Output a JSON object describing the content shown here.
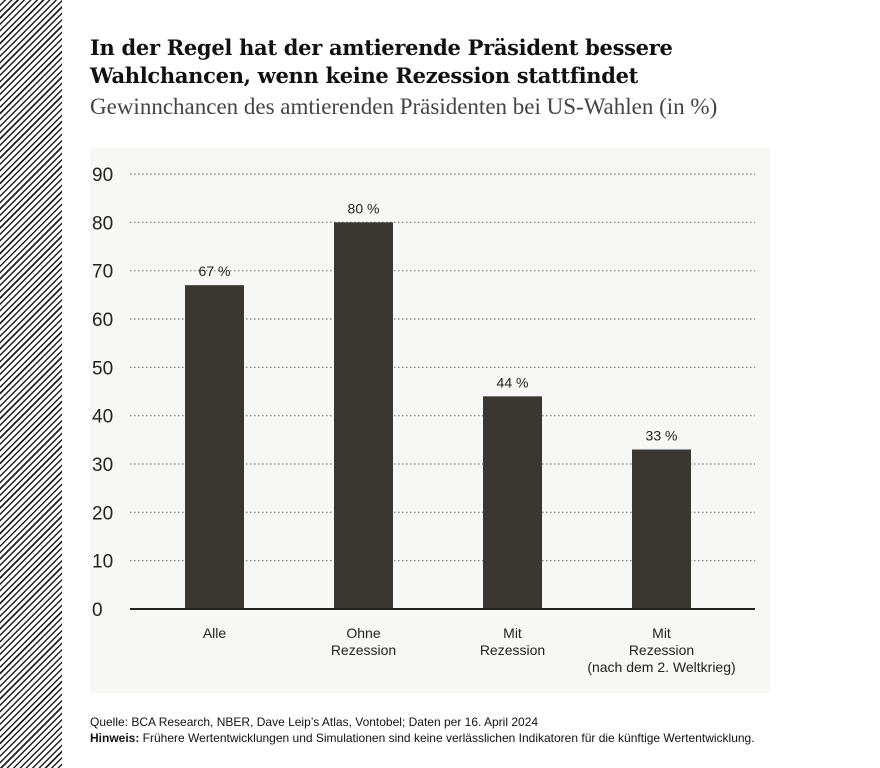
{
  "title_line1": "In der Regel hat der amtierende Präsident bessere",
  "title_line2": "Wahlchancen, wenn keine Rezession stattfindet",
  "subtitle": "Gewinnchancen des amtierenden Präsidenten bei US-Wahlen (in %)",
  "chart_data": {
    "type": "bar",
    "categories": [
      [
        "Alle"
      ],
      [
        "Ohne",
        "Rezession"
      ],
      [
        "Mit",
        "Rezession"
      ],
      [
        "Mit",
        "Rezession",
        "(nach dem 2. Weltkrieg)"
      ]
    ],
    "values": [
      67,
      80,
      44,
      33
    ],
    "data_labels": [
      "67 %",
      "80 %",
      "44 %",
      "33 %"
    ],
    "ylim": [
      0,
      90
    ],
    "yticks": [
      0,
      10,
      20,
      30,
      40,
      50,
      60,
      70,
      80,
      90
    ],
    "grid": true,
    "bar_color": "#3a3733",
    "background": "#f7f7f5"
  },
  "footer": {
    "source": "Quelle: BCA Research, NBER, Dave Leip’s Atlas, Vontobel; Daten per 16. April 2024",
    "note_label": "Hinweis:",
    "note_text": " Frühere Wertentwicklungen und Simulationen sind keine verlässlichen Indikatoren für die künftige Wertentwicklung."
  }
}
